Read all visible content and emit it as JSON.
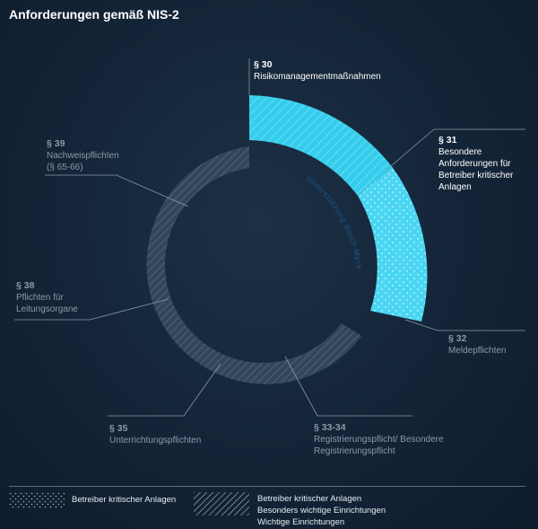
{
  "title": "Anforderungen gemäß NIS-2",
  "arc_text": "Unterstützung durch Myra",
  "sections": [
    {
      "id": "s30",
      "section": "§ 30",
      "text": "Risikomanagementmaßnahmen"
    },
    {
      "id": "s31",
      "section": "§ 31",
      "text": "Besondere Anforderungen für Betreiber kritischer Anlagen"
    },
    {
      "id": "s32",
      "section": "§ 32",
      "text": "Meldepflichten"
    },
    {
      "id": "s3334",
      "section": "§ 33-34",
      "text": "Registrierungspflicht/ Besondere Registrierungspflicht"
    },
    {
      "id": "s35",
      "section": "§ 35",
      "text": "Unterrichtungspflichten"
    },
    {
      "id": "s38",
      "section": "§ 38",
      "text": "Pflichten für Leitungsorgane"
    },
    {
      "id": "s39",
      "section": "§ 39",
      "text": "Nachweispflichten (§ 65-66)"
    }
  ],
  "legend": {
    "dots_label": "Betreiber kritischer Anlagen",
    "stripes_lines": [
      "Betreiber kritischer Anlagen",
      "Besonders wichtige Einrichtungen",
      "Wichtige Einrichtungen"
    ]
  },
  "colors": {
    "accent": "#3fcfef",
    "accent_light": "#5cd9f5",
    "ring": "#3a4b5c",
    "text": "#ffffff",
    "muted": "#8b9aa9"
  }
}
